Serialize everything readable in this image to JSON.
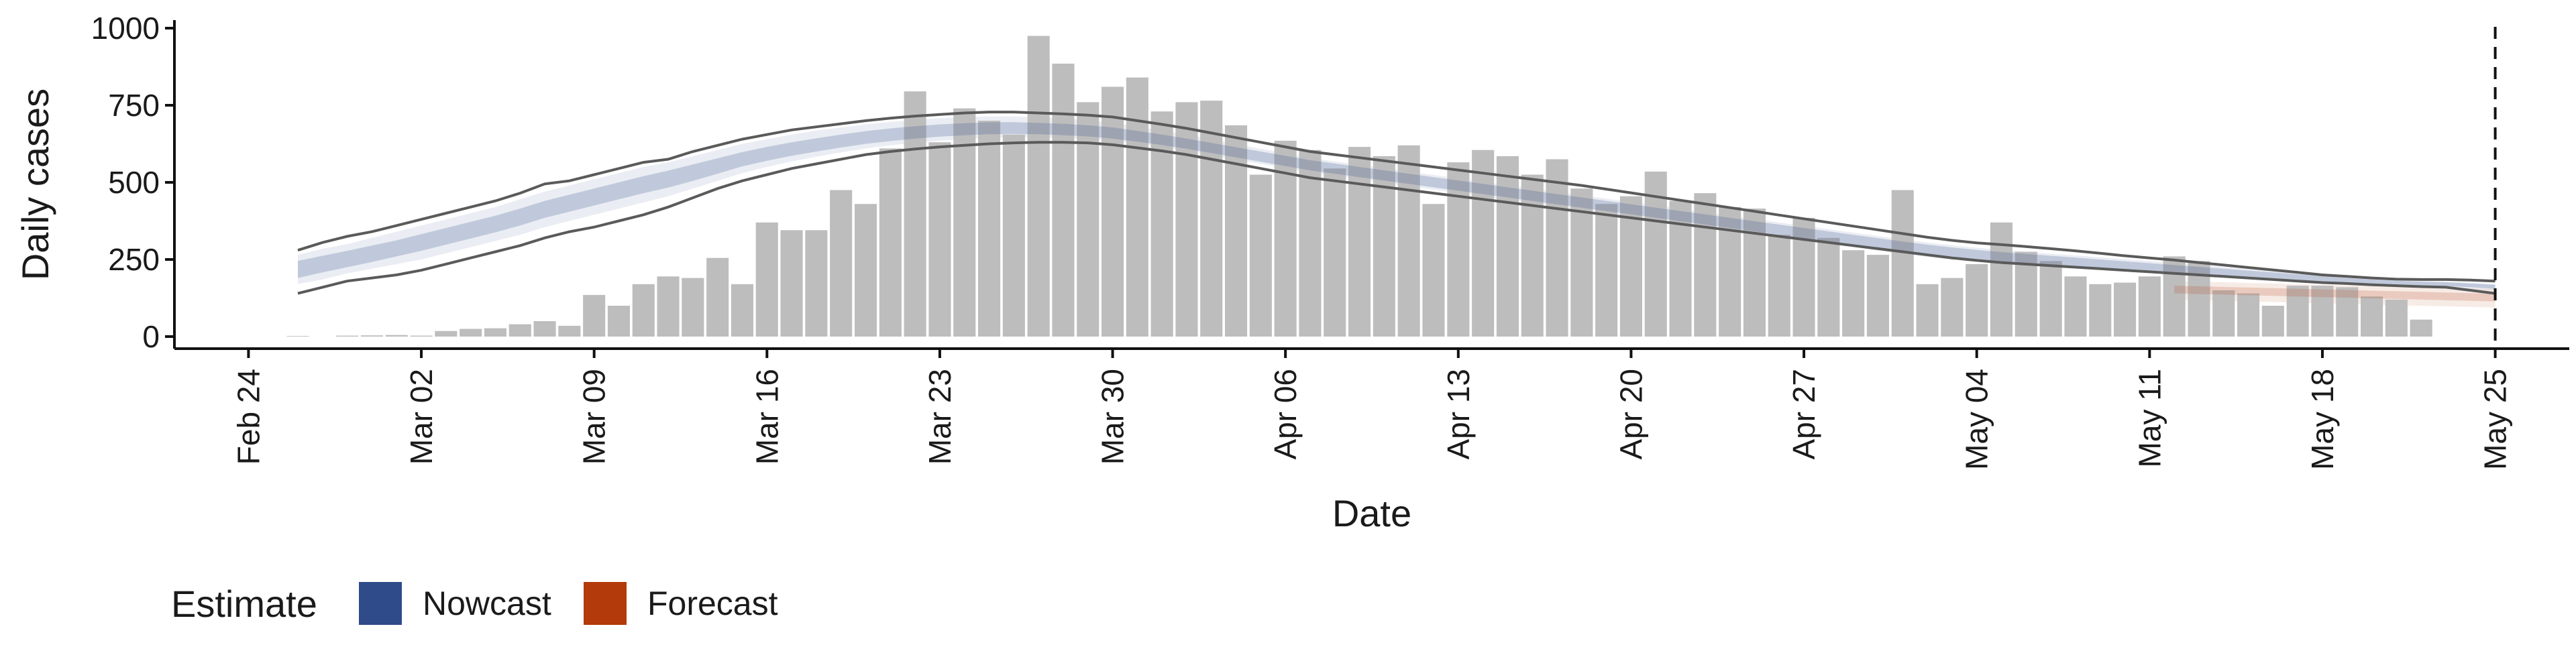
{
  "chart_data": {
    "type": "bar",
    "xlabel": "Date",
    "ylabel": "Daily cases",
    "ylim": [
      0,
      1000
    ],
    "yticks": [
      0,
      250,
      500,
      750,
      1000
    ],
    "ytick_labels": [
      "0",
      "250",
      "500",
      "750",
      "1000"
    ],
    "x_range": [
      "2020-02-21",
      "2020-05-28"
    ],
    "xticks": [
      "2020-02-24",
      "2020-03-02",
      "2020-03-09",
      "2020-03-16",
      "2020-03-23",
      "2020-03-30",
      "2020-04-06",
      "2020-04-13",
      "2020-04-20",
      "2020-04-27",
      "2020-05-04",
      "2020-05-11",
      "2020-05-18",
      "2020-05-25"
    ],
    "xtick_labels": [
      "Feb 24",
      "Mar 02",
      "Mar 09",
      "Mar 16",
      "Mar 23",
      "Mar 30",
      "Apr 06",
      "Apr 13",
      "Apr 20",
      "Apr 27",
      "May 04",
      "May 11",
      "May 18",
      "May 25"
    ],
    "grid": false,
    "reference_line": {
      "date": "2020-05-25",
      "style": "dashed"
    },
    "bars": {
      "start_date": "2020-02-26",
      "color": "#bdbdbd",
      "values": [
        2,
        0,
        3,
        4,
        5,
        3,
        18,
        25,
        27,
        40,
        50,
        35,
        135,
        100,
        170,
        195,
        190,
        255,
        170,
        370,
        345,
        345,
        475,
        430,
        610,
        795,
        630,
        740,
        700,
        655,
        975,
        885,
        760,
        810,
        840,
        730,
        760,
        765,
        685,
        525,
        635,
        605,
        545,
        615,
        585,
        620,
        430,
        565,
        605,
        585,
        525,
        575,
        480,
        430,
        455,
        535,
        440,
        465,
        420,
        415,
        330,
        385,
        320,
        280,
        265,
        475,
        170,
        190,
        235,
        370,
        275,
        245,
        195,
        170,
        175,
        195,
        260,
        245,
        150,
        140,
        100,
        165,
        165,
        160,
        130,
        120,
        55
      ]
    },
    "series": [
      {
        "name": "Nowcast",
        "color": "#2f4b8a",
        "start_date": "2020-02-26",
        "outer_upper": [
          280,
          305,
          325,
          340,
          360,
          380,
          400,
          420,
          440,
          465,
          495,
          505,
          525,
          545,
          565,
          575,
          600,
          620,
          640,
          655,
          670,
          680,
          690,
          700,
          708,
          715,
          720,
          725,
          728,
          728,
          725,
          722,
          718,
          712,
          700,
          688,
          675,
          660,
          645,
          630,
          615,
          600,
          590,
          580,
          570,
          560,
          550,
          540,
          530,
          520,
          510,
          500,
          490,
          478,
          466,
          454,
          442,
          430,
          418,
          406,
          394,
          382,
          370,
          358,
          346,
          334,
          322,
          312,
          304,
          298,
          292,
          285,
          278,
          270,
          262,
          255,
          248,
          240,
          232,
          224,
          216,
          208,
          200,
          195,
          190,
          186,
          185,
          185,
          183,
          180
        ],
        "outer_lower": [
          140,
          160,
          180,
          190,
          200,
          215,
          235,
          255,
          275,
          295,
          320,
          340,
          355,
          375,
          395,
          420,
          450,
          480,
          505,
          525,
          545,
          560,
          575,
          590,
          600,
          608,
          615,
          620,
          625,
          628,
          630,
          630,
          628,
          622,
          612,
          602,
          590,
          575,
          560,
          545,
          530,
          515,
          505,
          495,
          485,
          475,
          465,
          455,
          445,
          435,
          425,
          415,
          405,
          395,
          385,
          375,
          365,
          355,
          345,
          335,
          325,
          315,
          305,
          295,
          285,
          275,
          265,
          255,
          247,
          240,
          235,
          230,
          225,
          220,
          215,
          210,
          205,
          200,
          195,
          190,
          185,
          180,
          175,
          172,
          168,
          165,
          162,
          160,
          150,
          140
        ],
        "band90_upper": [
          265,
          285,
          300,
          320,
          340,
          360,
          380,
          400,
          420,
          445,
          470,
          490,
          510,
          530,
          550,
          565,
          585,
          605,
          625,
          640,
          655,
          668,
          678,
          688,
          696,
          703,
          708,
          712,
          714,
          714,
          711,
          707,
          701,
          693,
          681,
          668,
          654,
          639,
          624,
          609,
          594,
          579,
          568,
          557,
          546,
          535,
          524,
          513,
          502,
          491,
          480,
          469,
          458,
          447,
          436,
          425,
          414,
          403,
          392,
          381,
          370,
          359,
          348,
          337,
          326,
          315,
          305,
          296,
          288,
          281,
          275,
          269,
          263,
          257,
          251,
          245,
          239,
          233,
          226,
          219,
          212,
          205,
          198,
          192,
          187,
          183,
          180,
          178,
          175,
          170
        ],
        "band90_lower": [
          170,
          185,
          205,
          220,
          235,
          250,
          270,
          290,
          310,
          330,
          355,
          375,
          395,
          415,
          435,
          455,
          480,
          505,
          530,
          550,
          568,
          583,
          597,
          610,
          620,
          628,
          635,
          640,
          644,
          646,
          646,
          644,
          641,
          635,
          625,
          614,
          602,
          588,
          574,
          560,
          546,
          532,
          521,
          510,
          499,
          488,
          477,
          466,
          455,
          444,
          433,
          422,
          411,
          400,
          389,
          378,
          367,
          356,
          345,
          334,
          323,
          312,
          301,
          290,
          279,
          268,
          258,
          250,
          243,
          237,
          232,
          227,
          222,
          217,
          212,
          207,
          202,
          197,
          192,
          187,
          182,
          177,
          172,
          169,
          166,
          163,
          161,
          159,
          155,
          150
        ],
        "band50_upper": [
          245,
          262,
          278,
          295,
          312,
          332,
          352,
          372,
          392,
          415,
          440,
          460,
          480,
          500,
          520,
          538,
          558,
          578,
          598,
          615,
          630,
          643,
          655,
          666,
          675,
          682,
          688,
          692,
          695,
          695,
          693,
          690,
          685,
          678,
          667,
          655,
          642,
          628,
          614,
          600,
          586,
          572,
          561,
          550,
          539,
          528,
          517,
          506,
          495,
          484,
          473,
          462,
          451,
          440,
          429,
          418,
          407,
          396,
          385,
          374,
          363,
          352,
          341,
          330,
          319,
          308,
          298,
          289,
          281,
          274,
          268,
          262,
          256,
          250,
          244,
          238,
          232,
          226,
          220,
          214,
          208,
          202,
          196,
          190,
          185,
          181,
          178,
          176,
          172,
          168
        ],
        "band50_lower": [
          190,
          208,
          225,
          242,
          260,
          278,
          298,
          318,
          338,
          360,
          385,
          405,
          425,
          445,
          465,
          483,
          505,
          528,
          552,
          570,
          586,
          600,
          613,
          625,
          634,
          642,
          648,
          653,
          656,
          657,
          656,
          653,
          649,
          642,
          632,
          621,
          609,
          595,
          581,
          567,
          553,
          539,
          528,
          517,
          506,
          495,
          484,
          473,
          462,
          451,
          440,
          429,
          418,
          407,
          396,
          385,
          374,
          363,
          352,
          341,
          330,
          319,
          308,
          297,
          286,
          275,
          265,
          257,
          250,
          244,
          239,
          234,
          229,
          224,
          219,
          214,
          209,
          204,
          199,
          194,
          189,
          184,
          179,
          175,
          172,
          169,
          166,
          164,
          160,
          155
        ]
      },
      {
        "name": "Forecast",
        "color": "#b33a0a",
        "start_date": "2020-05-12",
        "band90_upper": [
          180,
          178,
          176,
          174,
          172,
          170,
          168,
          166,
          164,
          162,
          160,
          158,
          156,
          154
        ],
        "band90_lower": [
          120,
          118,
          116,
          114,
          112,
          110,
          108,
          106,
          104,
          102,
          100,
          98,
          96,
          94
        ],
        "band50_upper": [
          165,
          163,
          161,
          159,
          157,
          155,
          153,
          151,
          149,
          147,
          145,
          143,
          141,
          139
        ],
        "band50_lower": [
          140,
          138,
          136,
          134,
          132,
          130,
          128,
          126,
          124,
          122,
          120,
          118,
          116,
          114
        ]
      }
    ],
    "legend": {
      "title": "Estimate",
      "position": "bottom-left",
      "items": [
        {
          "label": "Nowcast",
          "color": "#2f4b8a"
        },
        {
          "label": "Forecast",
          "color": "#b33a0a"
        }
      ]
    }
  }
}
